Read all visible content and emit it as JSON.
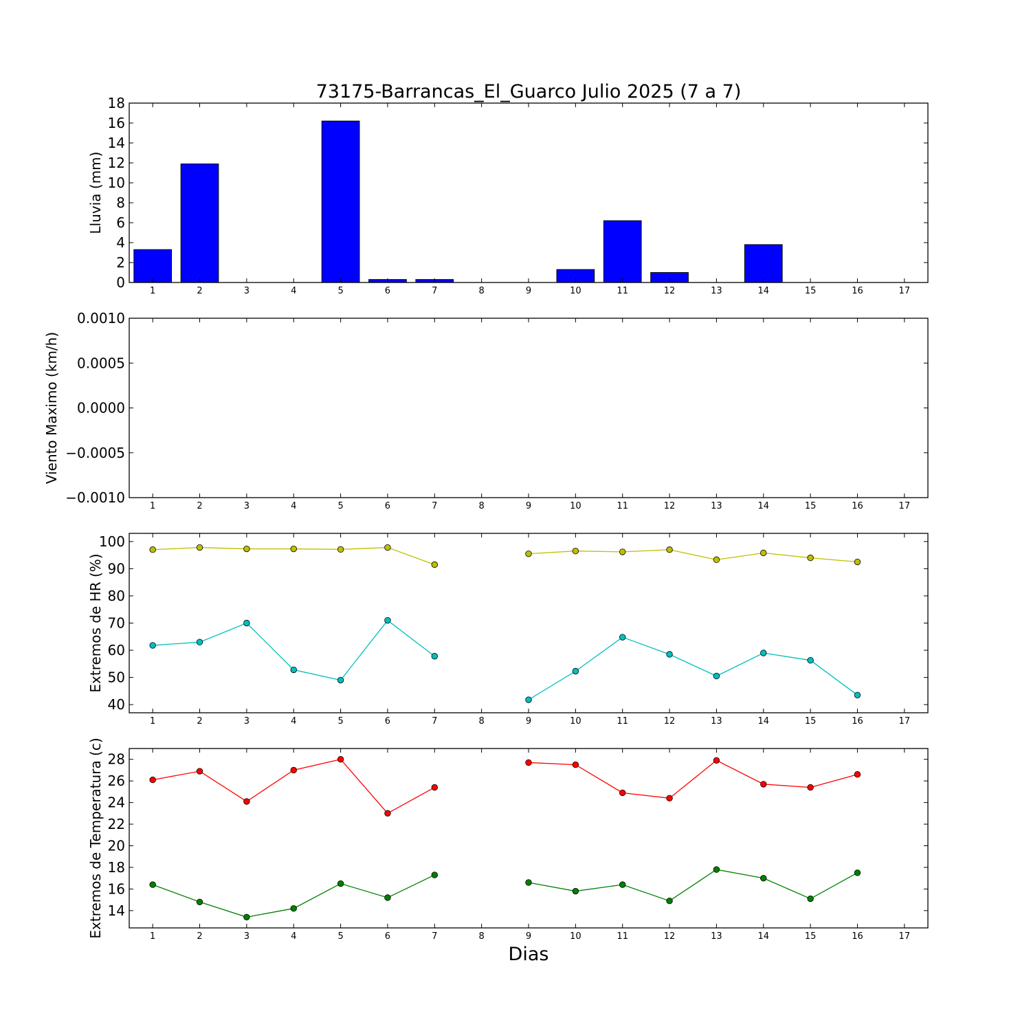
{
  "chart_data": {
    "title": "73175-Barrancas_El_Guarco Julio 2025  (7 a 7)",
    "xlabel": "Dias",
    "x_ticks": [
      1,
      2,
      3,
      4,
      5,
      6,
      7,
      8,
      9,
      10,
      11,
      12,
      13,
      14,
      15,
      16,
      17
    ],
    "panels": [
      {
        "id": "lluvia",
        "type": "bar",
        "ylabel": "Lluvia (mm)",
        "ylim": [
          0,
          18
        ],
        "yticks": [
          0,
          2,
          4,
          6,
          8,
          10,
          12,
          14,
          16,
          18
        ],
        "ytick_labels": [
          "0",
          "2",
          "4",
          "6",
          "8",
          "10",
          "12",
          "14",
          "16",
          "18"
        ],
        "categories": [
          1,
          2,
          3,
          4,
          5,
          6,
          7,
          8,
          9,
          10,
          11,
          12,
          13,
          14,
          15,
          16,
          17
        ],
        "values": [
          3.3,
          11.9,
          0,
          0,
          16.2,
          0.3,
          0.3,
          null,
          0,
          1.3,
          6.2,
          1.0,
          0,
          3.8,
          0,
          0,
          null
        ],
        "color": "#0000ff"
      },
      {
        "id": "viento",
        "type": "line",
        "ylabel": "Viento Maximo (km/h)",
        "ylim": [
          -0.001,
          0.001
        ],
        "yticks": [
          -0.001,
          -0.0005,
          0,
          0.0005,
          0.001
        ],
        "ytick_labels": [
          "−0.0010",
          "−0.0005",
          "0.0000",
          "0.0005",
          "0.0010"
        ],
        "series": []
      },
      {
        "id": "hr",
        "type": "line",
        "ylabel": "Extremos de HR (%)",
        "ylim": [
          37,
          103
        ],
        "yticks": [
          40,
          50,
          60,
          70,
          80,
          90,
          100
        ],
        "ytick_labels": [
          "40",
          "50",
          "60",
          "70",
          "80",
          "90",
          "100"
        ],
        "series": [
          {
            "color": "#bfbf00",
            "values": [
              97,
              97.8,
              97.3,
              97.3,
              97.1,
              97.8,
              91.5,
              null,
              95.5,
              96.5,
              96.2,
              97,
              93.3,
              95.8,
              94,
              92.5,
              null
            ]
          },
          {
            "color": "#00bfbf",
            "values": [
              61.8,
              63,
              70,
              52.8,
              49,
              71,
              57.8,
              null,
              41.8,
              52.3,
              64.8,
              58.5,
              50.5,
              59,
              56.3,
              43.5,
              null
            ]
          }
        ]
      },
      {
        "id": "temperatura",
        "type": "line",
        "ylabel": "Extremos de Temperatura (c)",
        "ylim": [
          12.4,
          29
        ],
        "yticks": [
          14,
          16,
          18,
          20,
          22,
          24,
          26,
          28
        ],
        "ytick_labels": [
          "14",
          "16",
          "18",
          "20",
          "22",
          "24",
          "26",
          "28"
        ],
        "series": [
          {
            "color": "#ff0000",
            "values": [
              26.1,
              26.9,
              24.1,
              27,
              28,
              23,
              25.4,
              null,
              27.7,
              27.5,
              24.9,
              24.4,
              27.9,
              25.7,
              25.4,
              26.6,
              null
            ]
          },
          {
            "color": "#008000",
            "values": [
              16.4,
              14.8,
              13.4,
              14.2,
              16.5,
              15.2,
              17.3,
              null,
              16.6,
              15.8,
              16.4,
              14.9,
              17.8,
              17,
              15.1,
              17.5,
              null
            ]
          }
        ]
      }
    ]
  }
}
